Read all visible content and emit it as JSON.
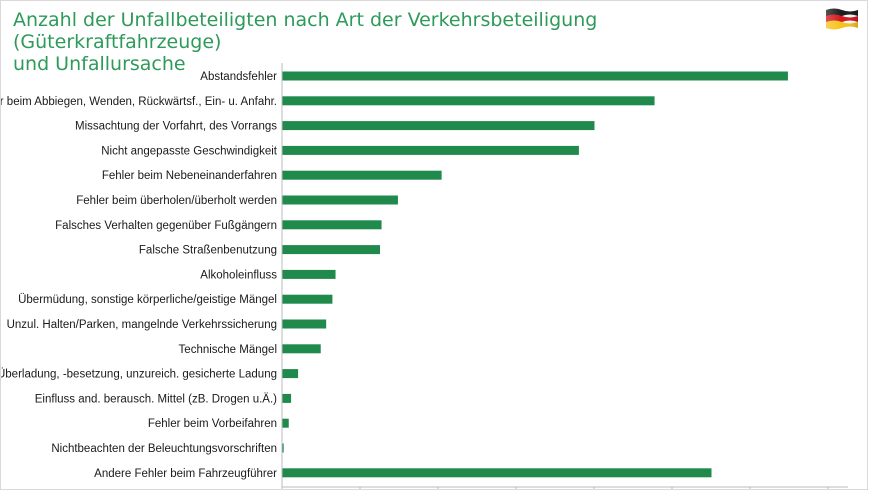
{
  "page": {
    "title_line1": "Anzahl der Unfallbeteiligten nach Art der Verkehrsbeteiligung (Güterkraftfahrzeuge)",
    "title_line2": "und Unfallursache",
    "flag_icon": "germany-flag-icon"
  },
  "colors": {
    "bar": "#1f8a4c",
    "title": "#2e9a5a",
    "axis": "#bbbbbb"
  },
  "chart_data": {
    "type": "bar",
    "orientation": "horizontal",
    "title": "Anzahl der Unfallbeteiligten nach Art der Verkehrsbeteiligung (Güterkraftfahrzeuge) und Unfallursache",
    "xlabel": "",
    "ylabel": "",
    "xlim": [
      0,
      7000
    ],
    "grid": false,
    "categories": [
      "Abstandsfehler",
      "Fehler beim Abbiegen, Wenden, Rückwärtsf., Ein- u. Anfahr.",
      "Missachtung der Vorfahrt, des Vorrangs",
      "Nicht angepasste Geschwindigkeit",
      "Fehler beim Nebeneinanderfahren",
      "Fehler beim überholen/überholt werden",
      "Falsches Verhalten gegenüber Fußgängern",
      "Falsche Straßenbenutzung",
      "Alkoholeinfluss",
      "Übermüdung, sonstige körperliche/geistige Mängel",
      "Unzul. Halten/Parken, mangelnde Verkehrssicherung",
      "Technische Mängel",
      "Überladung, -besetzung, unzureich. gesicherte Ladung",
      "Einfluss and. berausch. Mittel (zB. Drogen u.Ä.)",
      "Fehler beim Vorbeifahren",
      "Nichtbeachten der Beleuchtungsvorschriften",
      "Andere Fehler beim Fahrzeugführer"
    ],
    "values": [
      6480,
      4770,
      4000,
      3800,
      2040,
      1480,
      1270,
      1250,
      680,
      640,
      560,
      490,
      200,
      110,
      80,
      15,
      5500
    ]
  }
}
